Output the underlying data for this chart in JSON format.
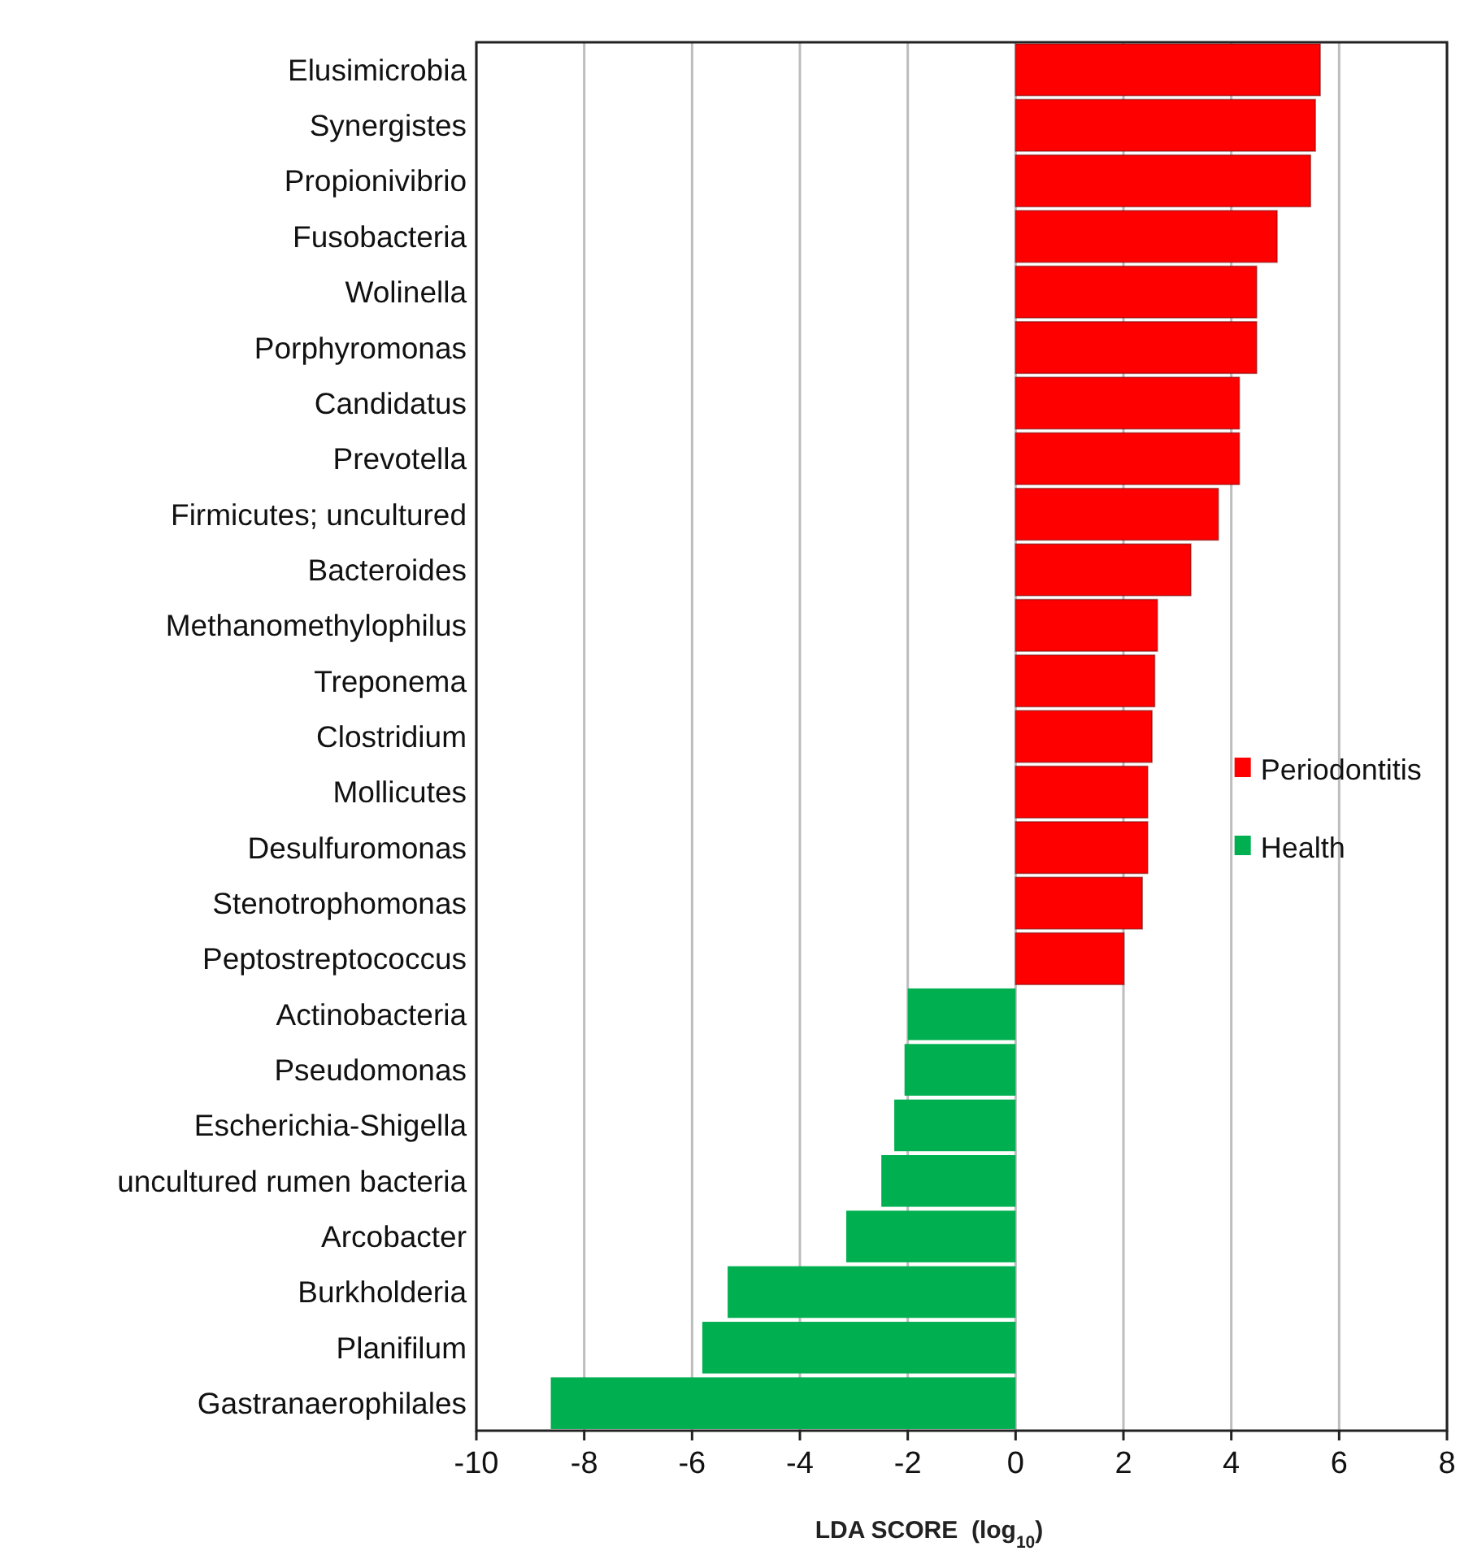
{
  "chart_data": {
    "type": "bar",
    "orientation": "horizontal",
    "stacked": true,
    "xlabel": "LDA SCORE  (log$_{10}$)",
    "categories": [
      "Elusimicrobia",
      "Synergistes",
      "Propionivibrio",
      "Fusobacteria",
      "Wolinella",
      "Porphyromonas",
      "Candidatus",
      "Prevotella",
      "Firmicutes; uncultured",
      "Bacteroides",
      "Methanomethylophilus",
      "Treponema",
      "Clostridium",
      "Mollicutes",
      "Desulfuromonas",
      "Stenotrophomonas",
      "Peptostreptococcus",
      "Actinobacteria",
      "Pseudomonas",
      "Escherichia-Shigella",
      "uncultured rumen bacteria",
      "Arcobacter",
      "Burkholderia",
      "Planifilum",
      "Gastranaerophilales"
    ],
    "series": [
      {
        "name": "Periodontitis",
        "color": "#ff0000",
        "values": [
          5.65,
          5.56,
          5.47,
          4.85,
          4.47,
          4.47,
          4.15,
          4.15,
          3.76,
          3.25,
          2.63,
          2.58,
          2.53,
          2.45,
          2.45,
          2.35,
          2.01,
          null,
          null,
          null,
          null,
          null,
          null,
          null,
          null
        ]
      },
      {
        "name": "Health",
        "color": "#00b050",
        "values": [
          null,
          null,
          null,
          null,
          null,
          null,
          null,
          null,
          null,
          null,
          null,
          null,
          null,
          null,
          null,
          null,
          null,
          -2.0,
          -2.06,
          -2.25,
          -2.49,
          -3.14,
          -5.34,
          -5.81,
          -8.62
        ]
      }
    ],
    "xlim": [
      -10,
      8
    ],
    "xticks": [
      -10,
      -8,
      -6,
      -4,
      -2,
      0,
      2,
      4,
      6,
      8
    ],
    "grid": "x",
    "legend": "right"
  }
}
